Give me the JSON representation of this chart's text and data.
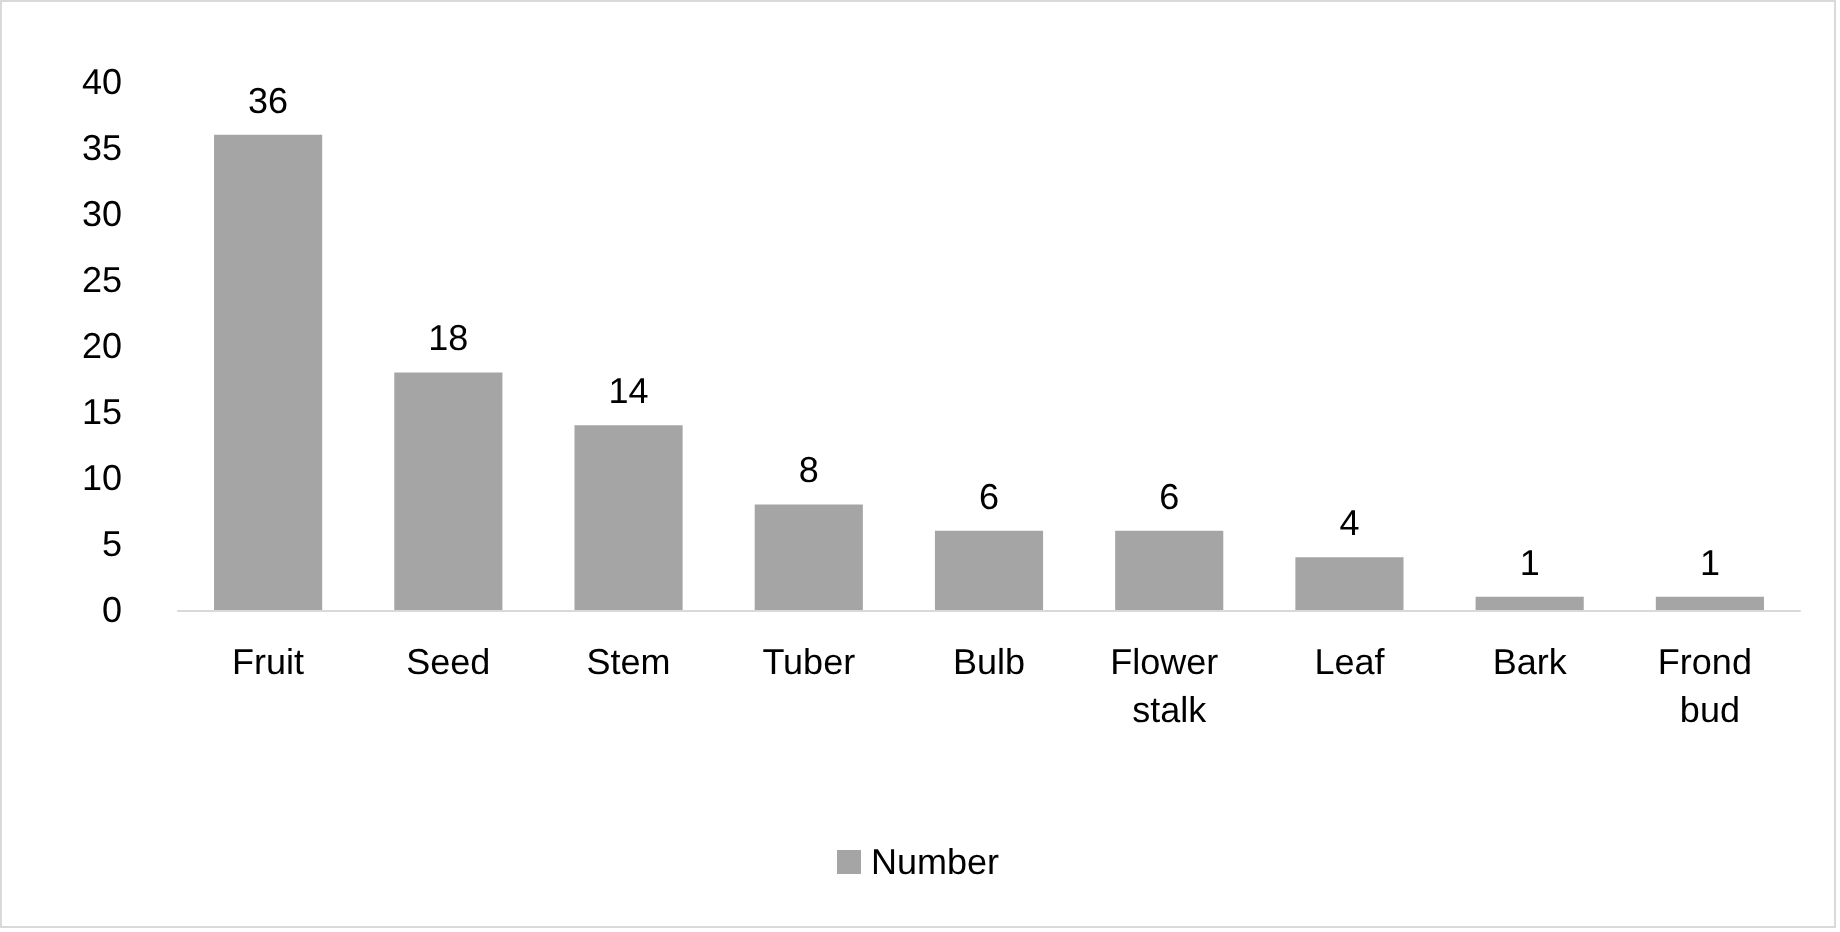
{
  "chart_data": {
    "type": "bar",
    "categories": [
      "Fruit",
      "Seed",
      "Stem",
      "Tuber",
      "Bulb",
      "Flower stalk",
      "Leaf",
      "Bark",
      "Frond bud"
    ],
    "series": [
      {
        "name": "Number",
        "color": "#a5a5a5",
        "values": [
          36,
          18,
          14,
          8,
          6,
          6,
          4,
          1,
          1
        ]
      }
    ],
    "ylim": [
      0,
      40
    ],
    "yticks": [
      0,
      5,
      10,
      15,
      20,
      25,
      30,
      35,
      40
    ],
    "grid": false,
    "legend": "bottom",
    "data_labels": true
  }
}
